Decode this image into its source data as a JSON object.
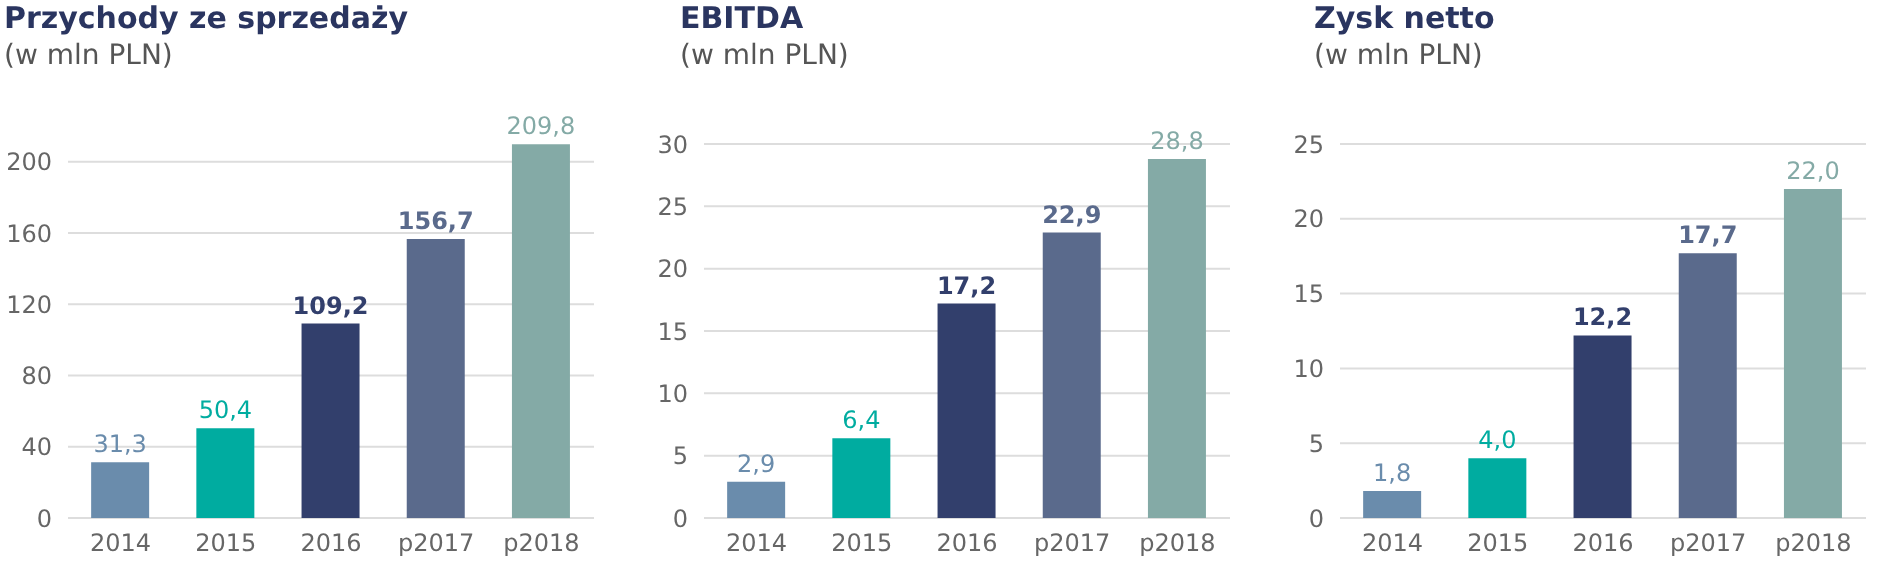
{
  "chart_data": [
    {
      "type": "bar",
      "title": "Przychody ze sprzedaży",
      "subtitle": "(w mln PLN)",
      "categories": [
        "2014",
        "2015",
        "2016",
        "p2017",
        "p2018"
      ],
      "values": [
        31.3,
        50.4,
        109.2,
        156.7,
        209.8
      ],
      "value_labels": [
        "31,3",
        "50,4",
        "109,2",
        "156,7",
        "209,8"
      ],
      "colors": [
        "#6a8cac",
        "#00aca0",
        "#323f6c",
        "#5a6a8c",
        "#84aaa6"
      ],
      "ylim": [
        0,
        210
      ],
      "yticks": [
        0,
        40,
        80,
        120,
        160,
        200
      ],
      "grid": "y"
    },
    {
      "type": "bar",
      "title": "EBITDA",
      "subtitle": "(w mln PLN)",
      "categories": [
        "2014",
        "2015",
        "2016",
        "p2017",
        "p2018"
      ],
      "values": [
        2.9,
        6.4,
        17.2,
        22.9,
        28.8
      ],
      "value_labels": [
        "2,9",
        "6,4",
        "17,2",
        "22,9",
        "28,8"
      ],
      "colors": [
        "#6a8cac",
        "#00aca0",
        "#323f6c",
        "#5a6a8c",
        "#84aaa6"
      ],
      "ylim": [
        0,
        30
      ],
      "yticks": [
        0,
        5,
        10,
        15,
        20,
        25,
        30
      ],
      "grid": "y"
    },
    {
      "type": "bar",
      "title": "Zysk netto",
      "subtitle": "(w mln PLN)",
      "categories": [
        "2014",
        "2015",
        "2016",
        "p2017",
        "p2018"
      ],
      "values": [
        1.8,
        4.0,
        12.2,
        17.7,
        22.0
      ],
      "value_labels": [
        "1,8",
        "4,0",
        "12,2",
        "17,7",
        "22,0"
      ],
      "colors": [
        "#6a8cac",
        "#00aca0",
        "#323f6c",
        "#5a6a8c",
        "#84aaa6"
      ],
      "ylim": [
        0,
        25
      ],
      "yticks": [
        0,
        5,
        10,
        15,
        20,
        25
      ],
      "grid": "y"
    }
  ]
}
